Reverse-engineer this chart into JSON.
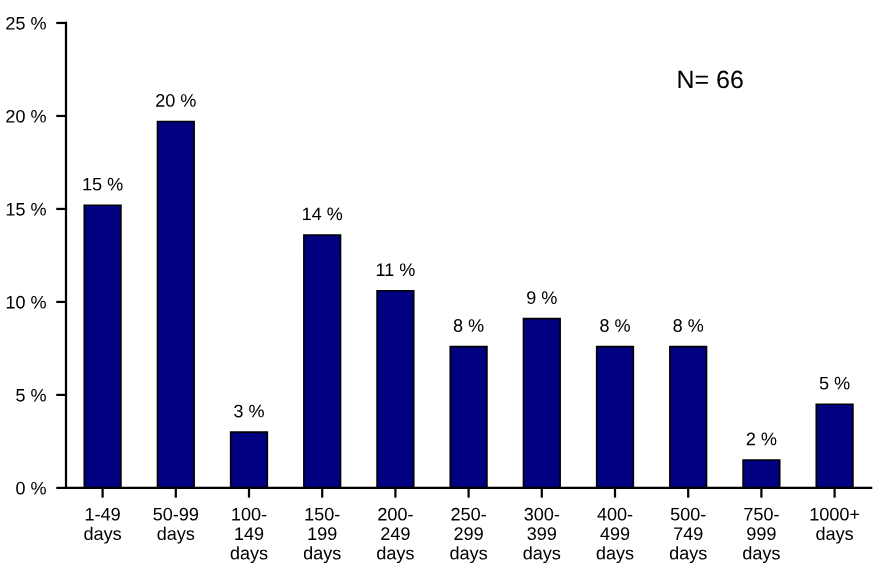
{
  "chart_data": {
    "type": "bar",
    "categories": [
      "1-49\ndays",
      "50-99\ndays",
      "100-\n149\ndays",
      "150-\n199\ndays",
      "200-\n249\ndays",
      "250-\n299\ndays",
      "300-\n399\ndays",
      "400-\n499\ndays",
      "500-\n749\ndays",
      "750-\n999\ndays",
      "1000+\ndays"
    ],
    "values": [
      15.2,
      19.7,
      3.0,
      13.6,
      10.6,
      7.6,
      9.1,
      7.6,
      7.6,
      1.5,
      4.5
    ],
    "value_labels": [
      "15 %",
      "20 %",
      "3 %",
      "14 %",
      "11 %",
      "8 %",
      "9 %",
      "8 %",
      "8 %",
      "2 %",
      "5 %"
    ],
    "color": "#000080",
    "ylim": [
      0,
      25
    ],
    "yticks": [
      {
        "value": 0,
        "label": "0 %"
      },
      {
        "value": 5,
        "label": "5 %"
      },
      {
        "value": 10,
        "label": "10 %"
      },
      {
        "value": 15,
        "label": "15 %"
      },
      {
        "value": 20,
        "label": "20 %"
      },
      {
        "value": 25,
        "label": "25 %"
      }
    ],
    "annotations": [
      "N= 66"
    ],
    "grid": false,
    "legend": false
  }
}
